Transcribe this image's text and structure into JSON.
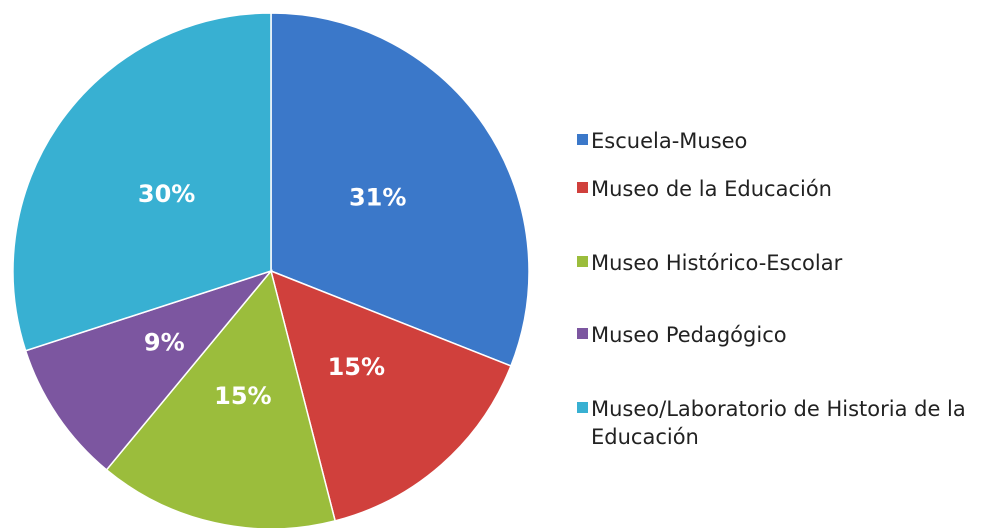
{
  "chart_data": {
    "type": "pie",
    "categories": [
      "Escuela-Museo",
      "Museo de la Educación",
      "Museo Histórico-Escolar",
      "Museo Pedagógico",
      "Museo/Laboratorio de Historia de la Educación"
    ],
    "values": [
      31,
      15,
      15,
      9,
      30
    ],
    "value_labels": [
      "31%",
      "15%",
      "15%",
      "9%",
      "30%"
    ],
    "colors": [
      "#3b78c9",
      "#d0403c",
      "#9bbd3c",
      "#7c56a0",
      "#38b0d2"
    ],
    "legend": "right"
  }
}
